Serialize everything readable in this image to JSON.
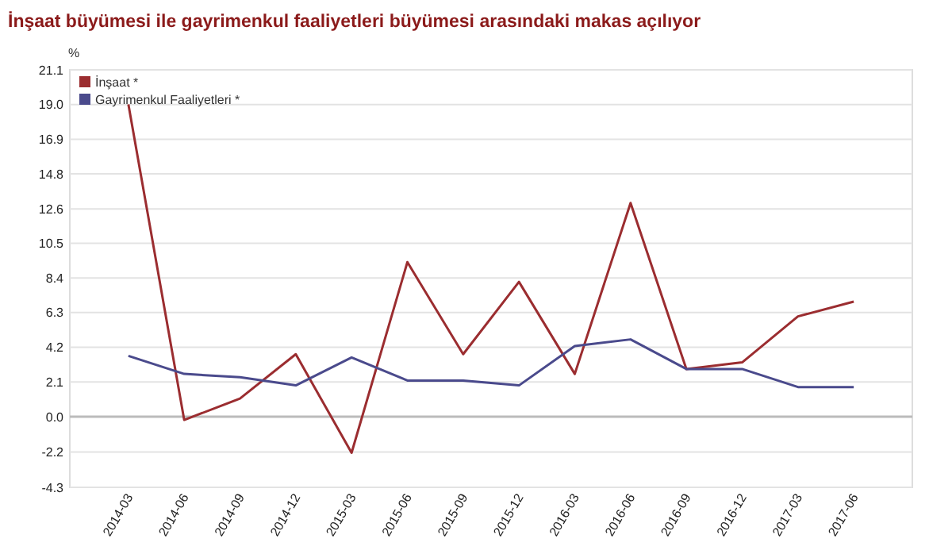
{
  "chart_data": {
    "type": "line",
    "title": "İnşaat büyümesi ile gayrimenkul faaliyetleri büyümesi arasındaki makas açılıyor",
    "ylabel": "%",
    "categories": [
      "2014-03",
      "2014-06",
      "2014-09",
      "2014-12",
      "2015-03",
      "2015-06",
      "2015-09",
      "2015-12",
      "2016-03",
      "2016-06",
      "2016-09",
      "2016-12",
      "2017-03",
      "2017-06"
    ],
    "series": [
      {
        "name": "İnşaat *",
        "color": "#9b2d30",
        "values": [
          19.0,
          -0.2,
          1.1,
          3.8,
          -2.2,
          9.4,
          3.8,
          8.2,
          2.6,
          13.0,
          2.9,
          3.3,
          6.1,
          7.0
        ]
      },
      {
        "name": "Gayrimenkul Faaliyetleri *",
        "color": "#4a4a8c",
        "values": [
          3.7,
          2.6,
          2.4,
          1.9,
          3.6,
          2.2,
          2.2,
          1.9,
          4.3,
          4.7,
          2.9,
          2.9,
          1.8,
          1.8
        ]
      }
    ],
    "ylim": [
      -4.3,
      21.1
    ],
    "yticks": [
      -4.3,
      {
        "value": -2.15,
        "label": "-2.2"
      },
      {
        "value": 0,
        "label": "0.0"
      },
      {
        "value": 2.11,
        "label": "2.1"
      },
      {
        "value": 4.22,
        "label": "4.2"
      },
      {
        "value": 6.33,
        "label": "6.3"
      },
      {
        "value": 8.44,
        "label": "8.4"
      },
      {
        "value": 10.55,
        "label": "10.5"
      },
      {
        "value": 12.64,
        "label": "12.6"
      },
      {
        "value": 14.77,
        "label": "14.8"
      },
      {
        "value": 16.88,
        "label": "16.9"
      },
      {
        "value": 18.99,
        "label": "19.0"
      },
      21.1
    ],
    "grid": "y",
    "legend": "top left",
    "marker": "none",
    "line_style": "solid"
  }
}
